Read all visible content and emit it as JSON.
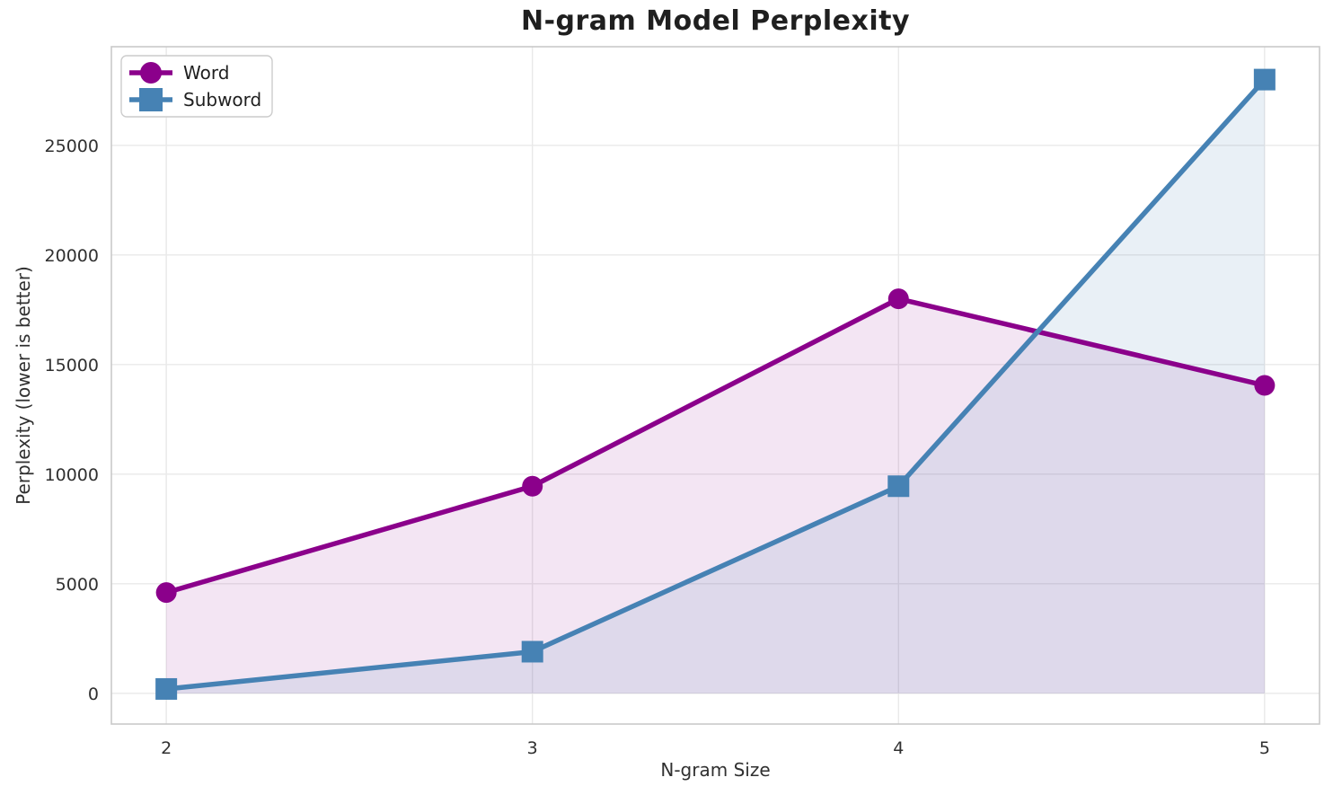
{
  "figure": {
    "title": "N-gram Model Perplexity",
    "xlabel": "N-gram Size",
    "ylabel": "Perplexity (lower is better)"
  },
  "chart_data": {
    "type": "line",
    "title": "N-gram Model Perplexity",
    "xlabel": "N-gram Size",
    "ylabel": "Perplexity (lower is better)",
    "x": [
      2,
      3,
      4,
      5
    ],
    "series": [
      {
        "name": "Word",
        "values": [
          4600,
          9450,
          18000,
          14050
        ],
        "color": "#8B008B",
        "marker": "circle",
        "fill_to_zero": true,
        "fill_alpha": 0.1
      },
      {
        "name": "Subword",
        "values": [
          200,
          1900,
          9450,
          28000
        ],
        "color": "#4682B4",
        "marker": "square",
        "fill_to_zero": true,
        "fill_alpha": 0.12
      }
    ],
    "xticks": [
      2,
      3,
      4,
      5
    ],
    "yticks": [
      0,
      5000,
      10000,
      15000,
      20000,
      25000
    ],
    "xlim": [
      1.85,
      5.15
    ],
    "ylim": [
      -1400,
      29500
    ],
    "grid": true,
    "legend_position": "upper left"
  },
  "style": {
    "background": "#ffffff",
    "grid_color": "#e9e9e9",
    "spine_color": "#c9c9c9",
    "tick_text_color": "#303030",
    "title_color": "#1f1f1f",
    "legend_border_color": "#cccccc",
    "legend_bg_color": "#ffffff"
  }
}
